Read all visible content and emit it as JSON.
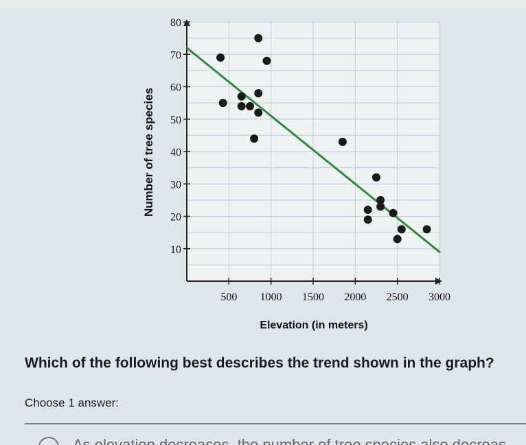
{
  "question": "Which of the following best describes the trend shown in the graph?",
  "prompt": "Choose 1 answer:",
  "option_a": "As elevation decreases, the number of tree species also decreas",
  "chart_data": {
    "type": "scatter",
    "xlabel": "Elevation (in meters)",
    "ylabel": "Number of tree species",
    "xlim": [
      0,
      3000
    ],
    "ylim": [
      0,
      80
    ],
    "xticks": [
      500,
      1000,
      1500,
      2000,
      2500,
      3000
    ],
    "yticks": [
      10,
      20,
      30,
      40,
      50,
      60,
      70,
      80
    ],
    "grid": true,
    "points": [
      {
        "x": 400,
        "y": 69
      },
      {
        "x": 850,
        "y": 75
      },
      {
        "x": 950,
        "y": 68
      },
      {
        "x": 430,
        "y": 55
      },
      {
        "x": 650,
        "y": 57
      },
      {
        "x": 650,
        "y": 54
      },
      {
        "x": 750,
        "y": 54
      },
      {
        "x": 850,
        "y": 58
      },
      {
        "x": 850,
        "y": 52
      },
      {
        "x": 800,
        "y": 44
      },
      {
        "x": 1850,
        "y": 43
      },
      {
        "x": 2250,
        "y": 32
      },
      {
        "x": 2300,
        "y": 25
      },
      {
        "x": 2300,
        "y": 23
      },
      {
        "x": 2150,
        "y": 22
      },
      {
        "x": 2150,
        "y": 19
      },
      {
        "x": 2450,
        "y": 21
      },
      {
        "x": 2550,
        "y": 16
      },
      {
        "x": 2500,
        "y": 13
      },
      {
        "x": 2850,
        "y": 16
      }
    ],
    "trendline": {
      "x": [
        0,
        3000
      ],
      "y": [
        72,
        9
      ]
    },
    "colors": {
      "points": "#1a1a1a",
      "trendline": "#2e8b3a",
      "grid": "#c4ccd0"
    }
  }
}
